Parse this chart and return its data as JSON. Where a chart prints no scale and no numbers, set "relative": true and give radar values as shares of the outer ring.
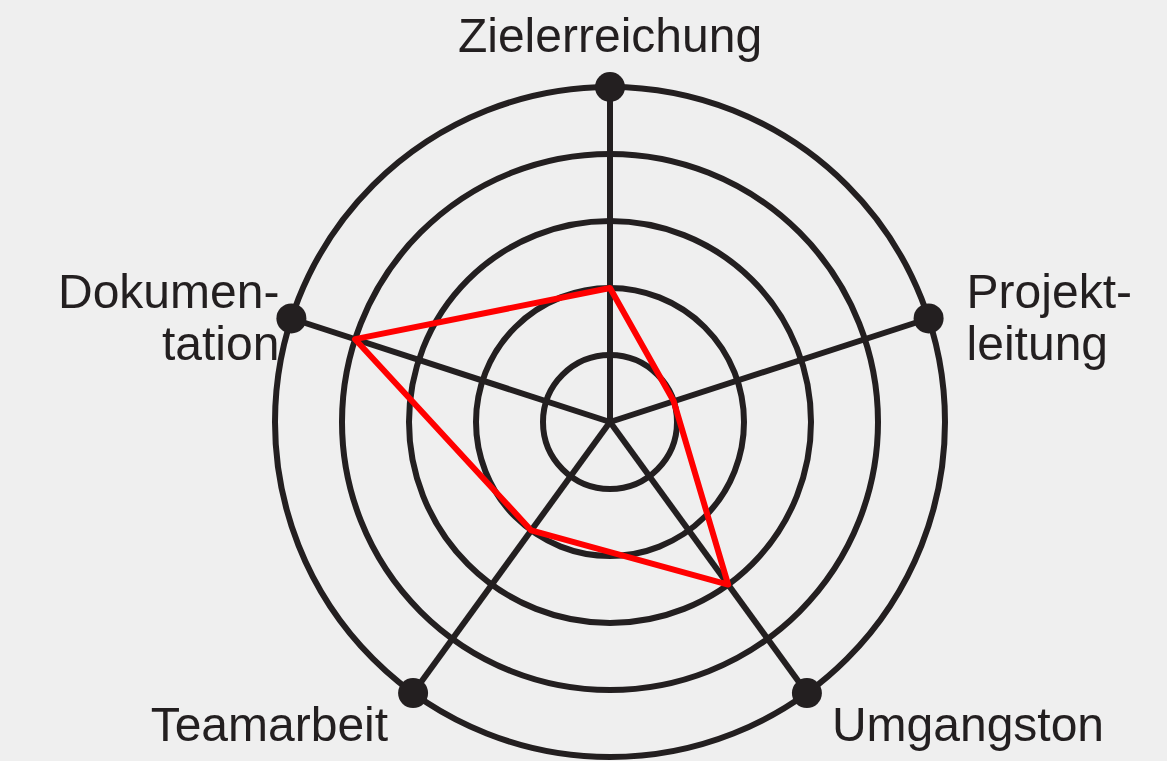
{
  "chart_data": {
    "type": "radar",
    "relative": true,
    "grid": true,
    "categories": [
      "Zielerreichung",
      "Projekt-\nleitung",
      "Umgangston",
      "Teamarbeit",
      "Dokumen-\ntation"
    ],
    "series": [
      {
        "color": "#ff0000",
        "values": [
          0.4,
          0.2,
          0.6,
          0.4,
          0.8
        ]
      }
    ]
  }
}
